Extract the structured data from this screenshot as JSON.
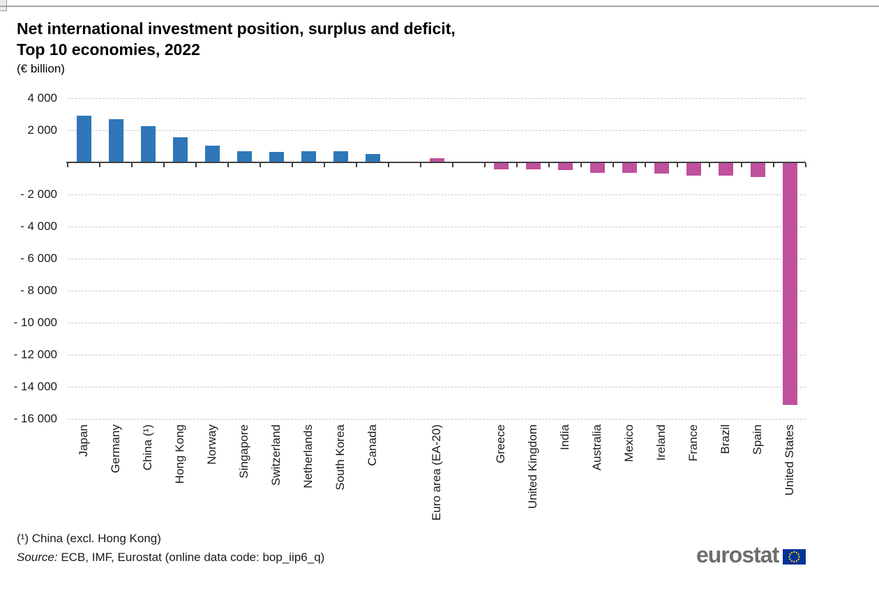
{
  "page": {
    "title_line1": "Net international investment position, surplus and deficit,",
    "title_line2": "Top 10 economies, 2022",
    "subtitle": "(€ billion)",
    "footnote": "(¹) China (excl. Hong Kong)",
    "source_label": "Source:",
    "source_text": " ECB, IMF,  Eurostat (online data code: bop_iip6_q)",
    "logo_text": "eurostat"
  },
  "chart_data": {
    "type": "bar",
    "title": "Net international investment position, surplus and deficit, Top 10 economies, 2022",
    "unit": "€ billion",
    "xlabel": "",
    "ylabel": "",
    "ylim": [
      -16000,
      4000
    ],
    "ytick_step": 2000,
    "grid": "horizontal-dashed",
    "legend": "none",
    "colors": {
      "blue": "#2E77B8",
      "pink": "#C0519D"
    },
    "yticks": [
      {
        "value": 4000,
        "label": "4 000"
      },
      {
        "value": 2000,
        "label": "2 000"
      },
      {
        "value": -2000,
        "label": "- 2 000"
      },
      {
        "value": -4000,
        "label": "- 4 000"
      },
      {
        "value": -6000,
        "label": "- 6 000"
      },
      {
        "value": -8000,
        "label": "- 8 000"
      },
      {
        "value": -10000,
        "label": "- 10 000"
      },
      {
        "value": -12000,
        "label": "- 12 000"
      },
      {
        "value": -14000,
        "label": "- 14 000"
      },
      {
        "value": -16000,
        "label": "- 16 000"
      }
    ],
    "bars": [
      {
        "label": "Japan",
        "value": 2900,
        "color": "blue",
        "slot": 0
      },
      {
        "label": "Germany",
        "value": 2680,
        "color": "blue",
        "slot": 1
      },
      {
        "label": "China (¹)",
        "value": 2280,
        "color": "blue",
        "slot": 2
      },
      {
        "label": "Hong Kong",
        "value": 1550,
        "color": "blue",
        "slot": 3
      },
      {
        "label": "Norway",
        "value": 1060,
        "color": "blue",
        "slot": 4
      },
      {
        "label": "Singapore",
        "value": 710,
        "color": "blue",
        "slot": 5
      },
      {
        "label": "Switzerland",
        "value": 650,
        "color": "blue",
        "slot": 6
      },
      {
        "label": "Netherlands",
        "value": 680,
        "color": "blue",
        "slot": 7
      },
      {
        "label": "South Korea",
        "value": 710,
        "color": "blue",
        "slot": 8
      },
      {
        "label": "Canada",
        "value": 510,
        "color": "blue",
        "slot": 9
      },
      {
        "label": "Euro area (EA-20)",
        "value": 250,
        "color": "pink",
        "slot": 11
      },
      {
        "label": "Greece",
        "value": -390,
        "color": "pink",
        "slot": 13
      },
      {
        "label": "United Kingdom",
        "value": -390,
        "color": "pink",
        "slot": 14
      },
      {
        "label": "India",
        "value": -430,
        "color": "pink",
        "slot": 15
      },
      {
        "label": "Australia",
        "value": -620,
        "color": "pink",
        "slot": 16
      },
      {
        "label": "Mexico",
        "value": -600,
        "color": "pink",
        "slot": 17
      },
      {
        "label": "Ireland",
        "value": -670,
        "color": "pink",
        "slot": 18
      },
      {
        "label": "France",
        "value": -770,
        "color": "pink",
        "slot": 19
      },
      {
        "label": "Brazil",
        "value": -790,
        "color": "pink",
        "slot": 20
      },
      {
        "label": "Spain",
        "value": -870,
        "color": "pink",
        "slot": 21
      },
      {
        "label": "United States",
        "value": -15100,
        "color": "pink",
        "slot": 22
      }
    ]
  }
}
